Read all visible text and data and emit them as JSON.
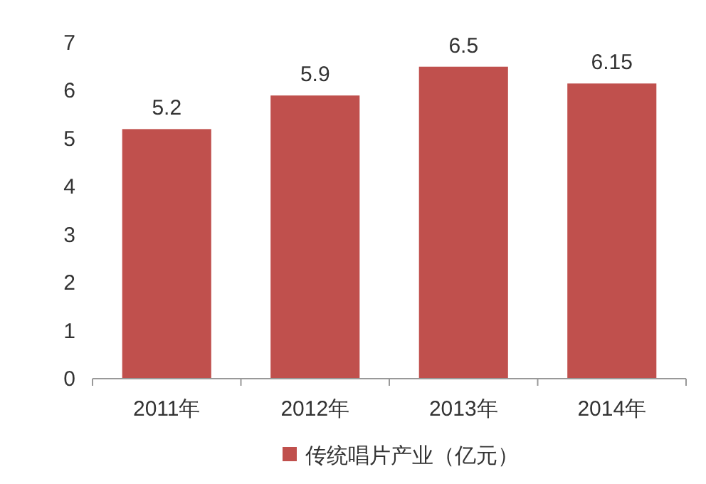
{
  "chart_data": {
    "type": "bar",
    "categories": [
      "2011年",
      "2012年",
      "2013年",
      "2014年"
    ],
    "series": [
      {
        "name": "传统唱片产业（亿元）",
        "color": "#c0504d",
        "values": [
          5.2,
          5.9,
          6.5,
          6.15
        ]
      }
    ],
    "ylim": [
      0,
      7
    ],
    "yticks": [
      0,
      1,
      2,
      3,
      4,
      5,
      6,
      7
    ],
    "data_labels": true,
    "legend": "bottom",
    "grid": false
  }
}
